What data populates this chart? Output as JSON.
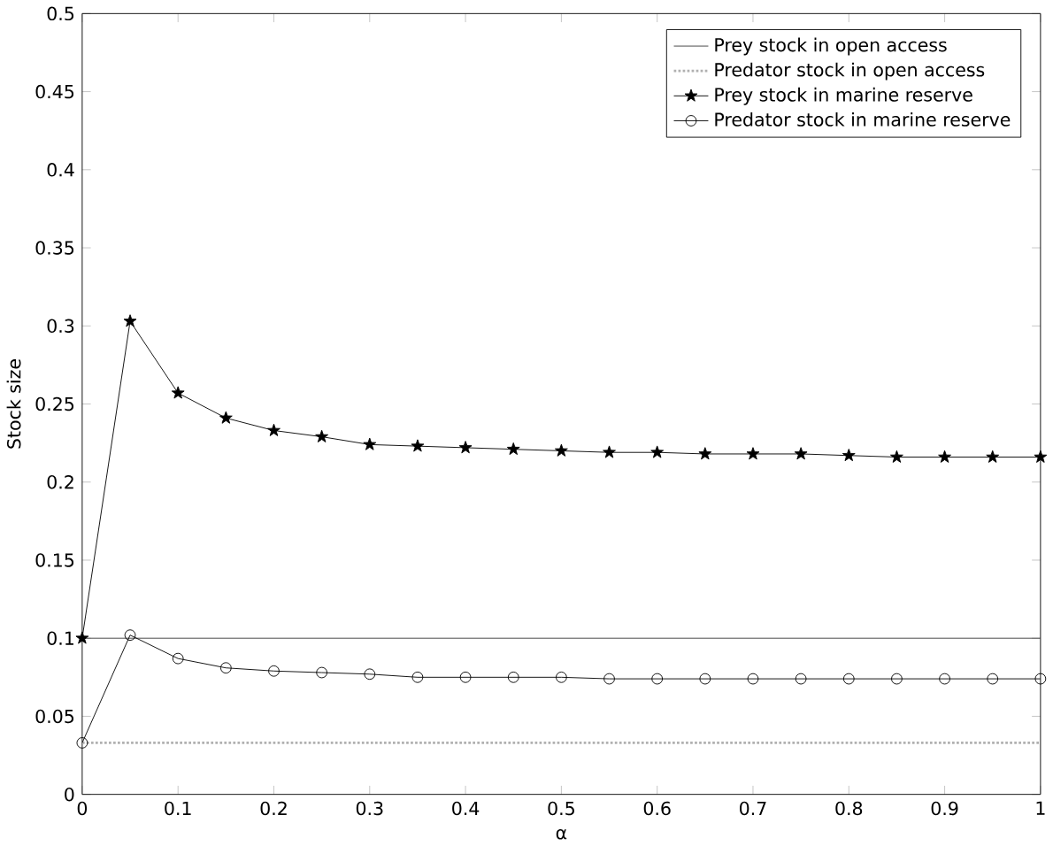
{
  "chart_data": {
    "type": "line",
    "xlabel": "α",
    "ylabel": "Stock size",
    "xlim": [
      0,
      1
    ],
    "ylim": [
      0,
      0.5
    ],
    "xticks": [
      0,
      0.1,
      0.2,
      0.3,
      0.4,
      0.5,
      0.6,
      0.7,
      0.8,
      0.9,
      1
    ],
    "yticks": [
      0,
      0.05,
      0.1,
      0.15,
      0.2,
      0.25,
      0.3,
      0.35,
      0.4,
      0.45,
      0.5
    ],
    "legend": "top right",
    "series": [
      {
        "name": "Prey stock in open access",
        "color": "#3a3a3a",
        "line_style": "solid",
        "marker": "none",
        "x": [
          0,
          1
        ],
        "values": [
          0.1,
          0.1
        ]
      },
      {
        "name": "Predator stock in open access",
        "color": "#b0b0b0",
        "line_style": "dotted",
        "marker": "none",
        "x": [
          0,
          1
        ],
        "values": [
          0.033,
          0.033
        ]
      },
      {
        "name": "Prey stock in marine reserve",
        "color": "#000000",
        "line_style": "solid",
        "marker": "star",
        "x": [
          0,
          0.05,
          0.1,
          0.15,
          0.2,
          0.25,
          0.3,
          0.35,
          0.4,
          0.45,
          0.5,
          0.55,
          0.6,
          0.65,
          0.7,
          0.75,
          0.8,
          0.85,
          0.9,
          0.95,
          1
        ],
        "values": [
          0.1,
          0.303,
          0.257,
          0.241,
          0.233,
          0.229,
          0.224,
          0.223,
          0.222,
          0.221,
          0.22,
          0.219,
          0.219,
          0.218,
          0.218,
          0.218,
          0.217,
          0.216,
          0.216,
          0.216,
          0.216
        ]
      },
      {
        "name": "Predator stock in marine reserve",
        "color": "#000000",
        "line_style": "solid",
        "marker": "circle",
        "x": [
          0,
          0.05,
          0.1,
          0.15,
          0.2,
          0.25,
          0.3,
          0.35,
          0.4,
          0.45,
          0.5,
          0.55,
          0.6,
          0.65,
          0.7,
          0.75,
          0.8,
          0.85,
          0.9,
          0.95,
          1
        ],
        "values": [
          0.033,
          0.102,
          0.087,
          0.081,
          0.079,
          0.078,
          0.077,
          0.075,
          0.075,
          0.075,
          0.075,
          0.074,
          0.074,
          0.074,
          0.074,
          0.074,
          0.074,
          0.074,
          0.074,
          0.074,
          0.074
        ]
      }
    ]
  }
}
